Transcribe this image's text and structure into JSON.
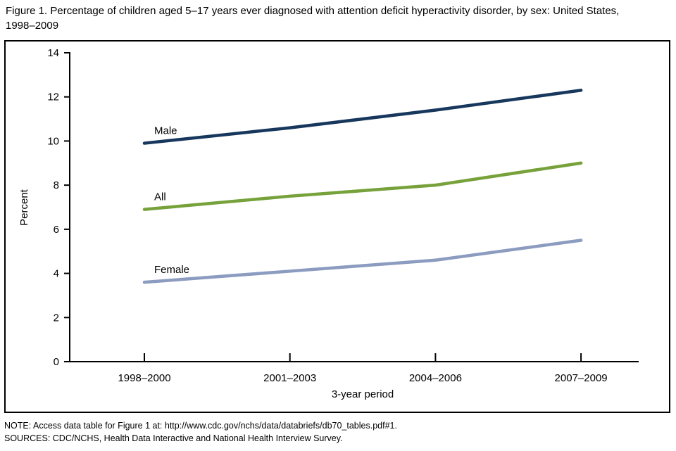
{
  "title": "Figure 1. Percentage of children aged 5–17 years ever diagnosed with attention deficit hyperactivity disorder, by sex: United States, 1998–2009",
  "notes": {
    "note": "NOTE: Access data table for Figure 1 at: http://www.cdc.gov/nchs/data/databriefs/db70_tables.pdf#1.",
    "sources": "SOURCES: CDC/NCHS, Health Data Interactive and National Health Interview Survey."
  },
  "chart_data": {
    "type": "line",
    "categories": [
      "1998–2000",
      "2001–2003",
      "2004–2006",
      "2007–2009"
    ],
    "series": [
      {
        "name": "Male",
        "values": [
          9.9,
          10.6,
          11.4,
          12.3
        ],
        "color": "#17375D"
      },
      {
        "name": "All",
        "values": [
          6.9,
          7.5,
          8.0,
          9.0
        ],
        "color": "#77A23B"
      },
      {
        "name": "Female",
        "values": [
          3.6,
          4.1,
          4.6,
          5.5
        ],
        "color": "#8C9BC0"
      }
    ],
    "xlabel": "3-year period",
    "ylabel": "Percent",
    "ylim": [
      0,
      14
    ],
    "ytick_step": 2,
    "grid": false,
    "legend_position": "inline-labels",
    "axis_color": "#000000"
  }
}
